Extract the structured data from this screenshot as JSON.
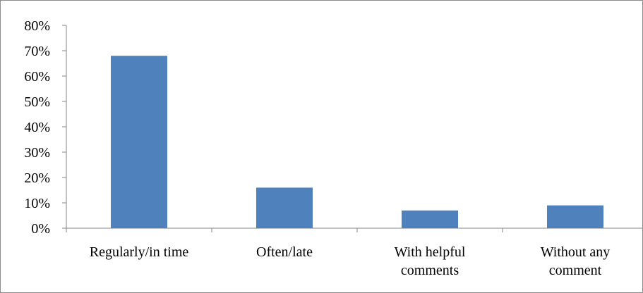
{
  "chart_data": {
    "type": "bar",
    "title": "",
    "xlabel": "",
    "ylabel": "",
    "categories": [
      [
        "Regularly/in time"
      ],
      [
        "Often/late"
      ],
      [
        "With helpful",
        "comments"
      ],
      [
        "Without any",
        "comment"
      ]
    ],
    "values": [
      68,
      16,
      7,
      9
    ],
    "ylim": [
      0,
      80
    ],
    "ytick_step": 10,
    "y_tick_suffix": "%",
    "grid": false,
    "legend": "none",
    "bar_color": "#4f81bd"
  }
}
